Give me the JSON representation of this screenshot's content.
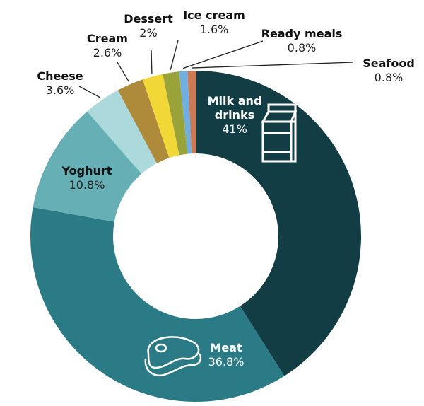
{
  "chart_data": {
    "type": "pie",
    "subtype": "donut",
    "title": "",
    "categories": [
      "Milk and drinks",
      "Meat",
      "Yoghurt",
      "Cheese",
      "Cream",
      "Dessert",
      "Ice cream",
      "Ready meals",
      "Seafood"
    ],
    "values": [
      41,
      36.8,
      10.8,
      3.6,
      2.6,
      2,
      1.6,
      0.8,
      0.8
    ],
    "unit": "%",
    "colors": [
      "#133d44",
      "#2a7b86",
      "#66b0b5",
      "#acd9db",
      "#ae8a3b",
      "#f2d837",
      "#9aa33a",
      "#6fb0e0",
      "#cc7a55"
    ],
    "labels": [
      {
        "name": "Milk and drinks",
        "value": "41%"
      },
      {
        "name": "Meat",
        "value": "36.8%"
      },
      {
        "name": "Yoghurt",
        "value": "10.8%"
      },
      {
        "name": "Cheese",
        "value": "3.6%"
      },
      {
        "name": "Cream",
        "value": "2.6%"
      },
      {
        "name": "Dessert",
        "value": "2%"
      },
      {
        "name": "Ice cream",
        "value": "1.6%"
      },
      {
        "name": "Ready meals",
        "value": "0.8%"
      },
      {
        "name": "Seafood",
        "value": "0.8%"
      }
    ],
    "icons": {
      "milk": "milk-carton-icon",
      "meat": "steak-icon"
    }
  }
}
